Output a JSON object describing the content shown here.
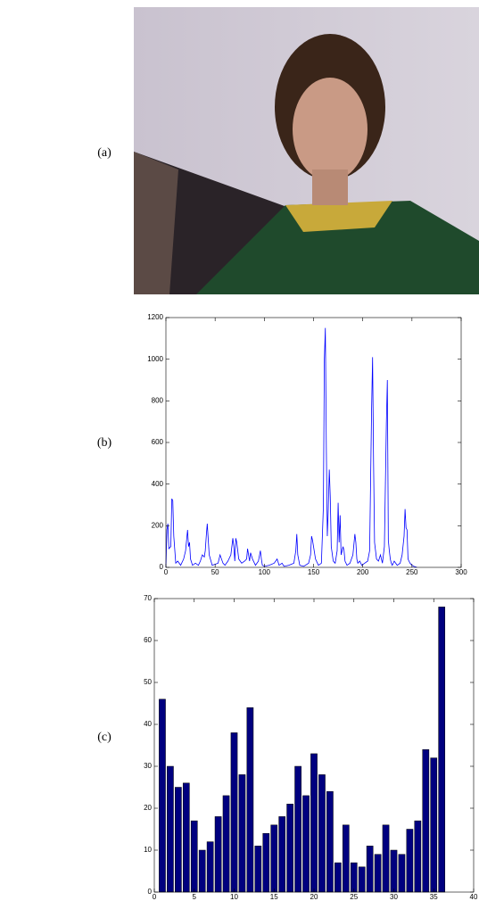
{
  "labels": [
    "(a)",
    "(b)",
    "(c)"
  ],
  "chart_data": [
    {
      "type": "line",
      "color": "#0000ff",
      "x": [
        0,
        1,
        2,
        3,
        5,
        6,
        7,
        8,
        10,
        12,
        15,
        18,
        20,
        22,
        23,
        24,
        25,
        27,
        30,
        33,
        35,
        37,
        39,
        40,
        41,
        42,
        44,
        47,
        50,
        53,
        55,
        58,
        60,
        63,
        66,
        68,
        69,
        70,
        71,
        72,
        74,
        77,
        80,
        82,
        83,
        84,
        85,
        86,
        88,
        91,
        94,
        96,
        97,
        98,
        100,
        105,
        110,
        113,
        115,
        118,
        120,
        125,
        130,
        132,
        133,
        134,
        136,
        140,
        145,
        147,
        148,
        149,
        150,
        152,
        155,
        158,
        160,
        161,
        162,
        163,
        164,
        165,
        166,
        167,
        168,
        170,
        172,
        174,
        175,
        176,
        177,
        178,
        180,
        181,
        182,
        184,
        187,
        190,
        192,
        193,
        194,
        195,
        197,
        199,
        202,
        205,
        207,
        209,
        210,
        211,
        212,
        213,
        214,
        216,
        218,
        220,
        222,
        224,
        225,
        226,
        227,
        228,
        229,
        230,
        232,
        235,
        238,
        240,
        242,
        243,
        244,
        245,
        246,
        247,
        248,
        250,
        252,
        255
      ],
      "values": [
        0,
        180,
        210,
        90,
        100,
        330,
        320,
        150,
        20,
        30,
        10,
        40,
        80,
        180,
        100,
        120,
        40,
        10,
        20,
        10,
        30,
        60,
        50,
        80,
        150,
        210,
        60,
        10,
        15,
        20,
        60,
        20,
        10,
        30,
        60,
        140,
        100,
        30,
        140,
        120,
        40,
        20,
        30,
        40,
        90,
        60,
        30,
        70,
        40,
        10,
        30,
        80,
        40,
        10,
        5,
        10,
        20,
        40,
        10,
        20,
        5,
        10,
        20,
        80,
        160,
        60,
        10,
        5,
        20,
        60,
        150,
        130,
        100,
        40,
        10,
        20,
        290,
        1000,
        1150,
        580,
        150,
        280,
        470,
        340,
        100,
        30,
        20,
        80,
        310,
        120,
        250,
        60,
        100,
        80,
        30,
        10,
        20,
        60,
        160,
        120,
        40,
        20,
        30,
        10,
        20,
        30,
        80,
        760,
        1010,
        500,
        120,
        80,
        40,
        30,
        60,
        20,
        100,
        690,
        900,
        130,
        80,
        40,
        20,
        10,
        30,
        10,
        20,
        60,
        150,
        280,
        190,
        180,
        40,
        30,
        20,
        10,
        5,
        0
      ],
      "xlim": [
        0,
        300
      ],
      "xticks": [
        0,
        50,
        100,
        150,
        200,
        250,
        300
      ],
      "ylim": [
        0,
        1200
      ],
      "yticks": [
        0,
        200,
        400,
        600,
        800,
        1000,
        1200
      ]
    },
    {
      "type": "bar",
      "color": "#00007f",
      "x": [
        1,
        2,
        3,
        4,
        5,
        6,
        7,
        8,
        9,
        10,
        11,
        12,
        13,
        14,
        15,
        16,
        17,
        18,
        19,
        20,
        21,
        22,
        23,
        24,
        25,
        26,
        27,
        28,
        29,
        30,
        31,
        32,
        33,
        34,
        35,
        36
      ],
      "values": [
        46,
        30,
        25,
        26,
        17,
        10,
        12,
        18,
        23,
        38,
        28,
        44,
        11,
        14,
        16,
        18,
        21,
        30,
        23,
        33,
        28,
        24,
        7,
        16,
        7,
        6,
        11,
        9,
        16,
        10,
        9,
        15,
        17,
        34,
        32,
        68
      ],
      "xlim": [
        0,
        40
      ],
      "xticks": [
        0,
        5,
        10,
        15,
        20,
        25,
        30,
        35,
        40
      ],
      "ylim": [
        0,
        70
      ],
      "yticks": [
        0,
        10,
        20,
        30,
        40,
        50,
        60,
        70
      ]
    }
  ]
}
